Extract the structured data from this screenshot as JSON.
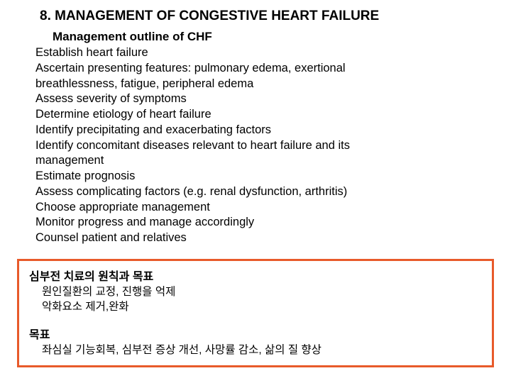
{
  "title": "8. MANAGEMENT OF CONGESTIVE HEART FAILURE",
  "subtitle": "Management outline of CHF",
  "outline": {
    "items": [
      "Establish  heart failure",
      "Ascertain presenting features: pulmonary edema, exertional",
      "  breathlessness, fatigue, peripheral edema",
      "Assess severity of symptoms",
      "Determine etiology of heart failure",
      "Identify precipitating and exacerbating factors",
      "Identify concomitant diseases relevant to heart failure and its",
      " management",
      "Estimate prognosis",
      "Assess complicating factors (e.g. renal dysfunction, arthritis)",
      "Choose appropriate management",
      "Monitor progress and manage accordingly",
      "Counsel patient and relatives"
    ]
  },
  "box": {
    "border_color": "#e85a2a",
    "section1": {
      "heading": "심부전 치료의 원칙과 목표",
      "lines": [
        "원인질환의 교정, 진행을 억제",
        "악화요소 제거,완화"
      ]
    },
    "section2": {
      "heading": "목표",
      "lines": [
        "좌심실 기능회복, 심부전 증상 개선, 사망률 감소, 삶의 질 향상"
      ]
    }
  },
  "colors": {
    "text": "#000000",
    "background": "#ffffff"
  }
}
